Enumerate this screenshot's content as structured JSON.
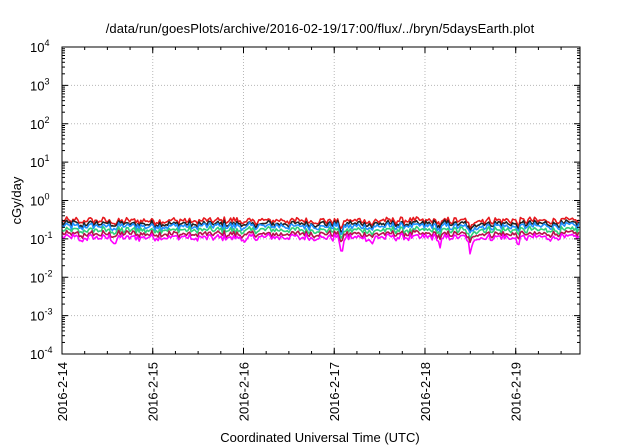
{
  "chart_data": {
    "type": "line",
    "title": "/data/run/goesPlots/archive/2016-02-19/17:00/flux/../bryn/5daysEarth.plot",
    "xlabel": "Coordinated Universal Time (UTC)",
    "ylabel": "cGy/day",
    "yscale": "log",
    "ylim": [
      0.0001,
      10000
    ],
    "y_ticks": [
      {
        "value": 0.0001,
        "base": "10",
        "exp": "-4"
      },
      {
        "value": 0.001,
        "base": "10",
        "exp": "-3"
      },
      {
        "value": 0.01,
        "base": "10",
        "exp": "-2"
      },
      {
        "value": 0.1,
        "base": "10",
        "exp": "-1"
      },
      {
        "value": 1,
        "base": "10",
        "exp": "0"
      },
      {
        "value": 10,
        "base": "10",
        "exp": "1"
      },
      {
        "value": 100,
        "base": "10",
        "exp": "2"
      },
      {
        "value": 1000,
        "base": "10",
        "exp": "3"
      },
      {
        "value": 10000,
        "base": "10",
        "exp": "4"
      }
    ],
    "xlim": [
      "2016-02-14",
      "2016-02-19T17:00"
    ],
    "x_ticks": [
      "2016-2-14",
      "2016-2-15",
      "2016-2-16",
      "2016-2-17",
      "2016-2-18",
      "2016-2-19"
    ],
    "grid": true,
    "series": [
      {
        "color": "#e6191e",
        "base": 0.3
      },
      {
        "color": "#222222",
        "base": 0.25
      },
      {
        "color": "#1e90ff",
        "base": 0.215
      },
      {
        "color": "#2fd07a",
        "base": 0.17
      },
      {
        "color": "#b5124a",
        "base": 0.135
      },
      {
        "color": "#ff00ff",
        "base": 0.11
      }
    ],
    "dips": [
      {
        "x": "2016-02-14T05:00",
        "factor": 0.75
      },
      {
        "x": "2016-02-14T14:00",
        "factor": 0.7
      },
      {
        "x": "2016-02-15T11:00",
        "factor": 0.75
      },
      {
        "x": "2016-02-16T00:30",
        "factor": 0.7
      },
      {
        "x": "2016-02-17T02:00",
        "factor": 0.35
      },
      {
        "x": "2016-02-17T10:00",
        "factor": 0.65
      },
      {
        "x": "2016-02-18T04:00",
        "factor": 0.6
      },
      {
        "x": "2016-02-18T12:00",
        "factor": 0.28
      },
      {
        "x": "2016-02-19T00:30",
        "factor": 0.7
      }
    ]
  }
}
